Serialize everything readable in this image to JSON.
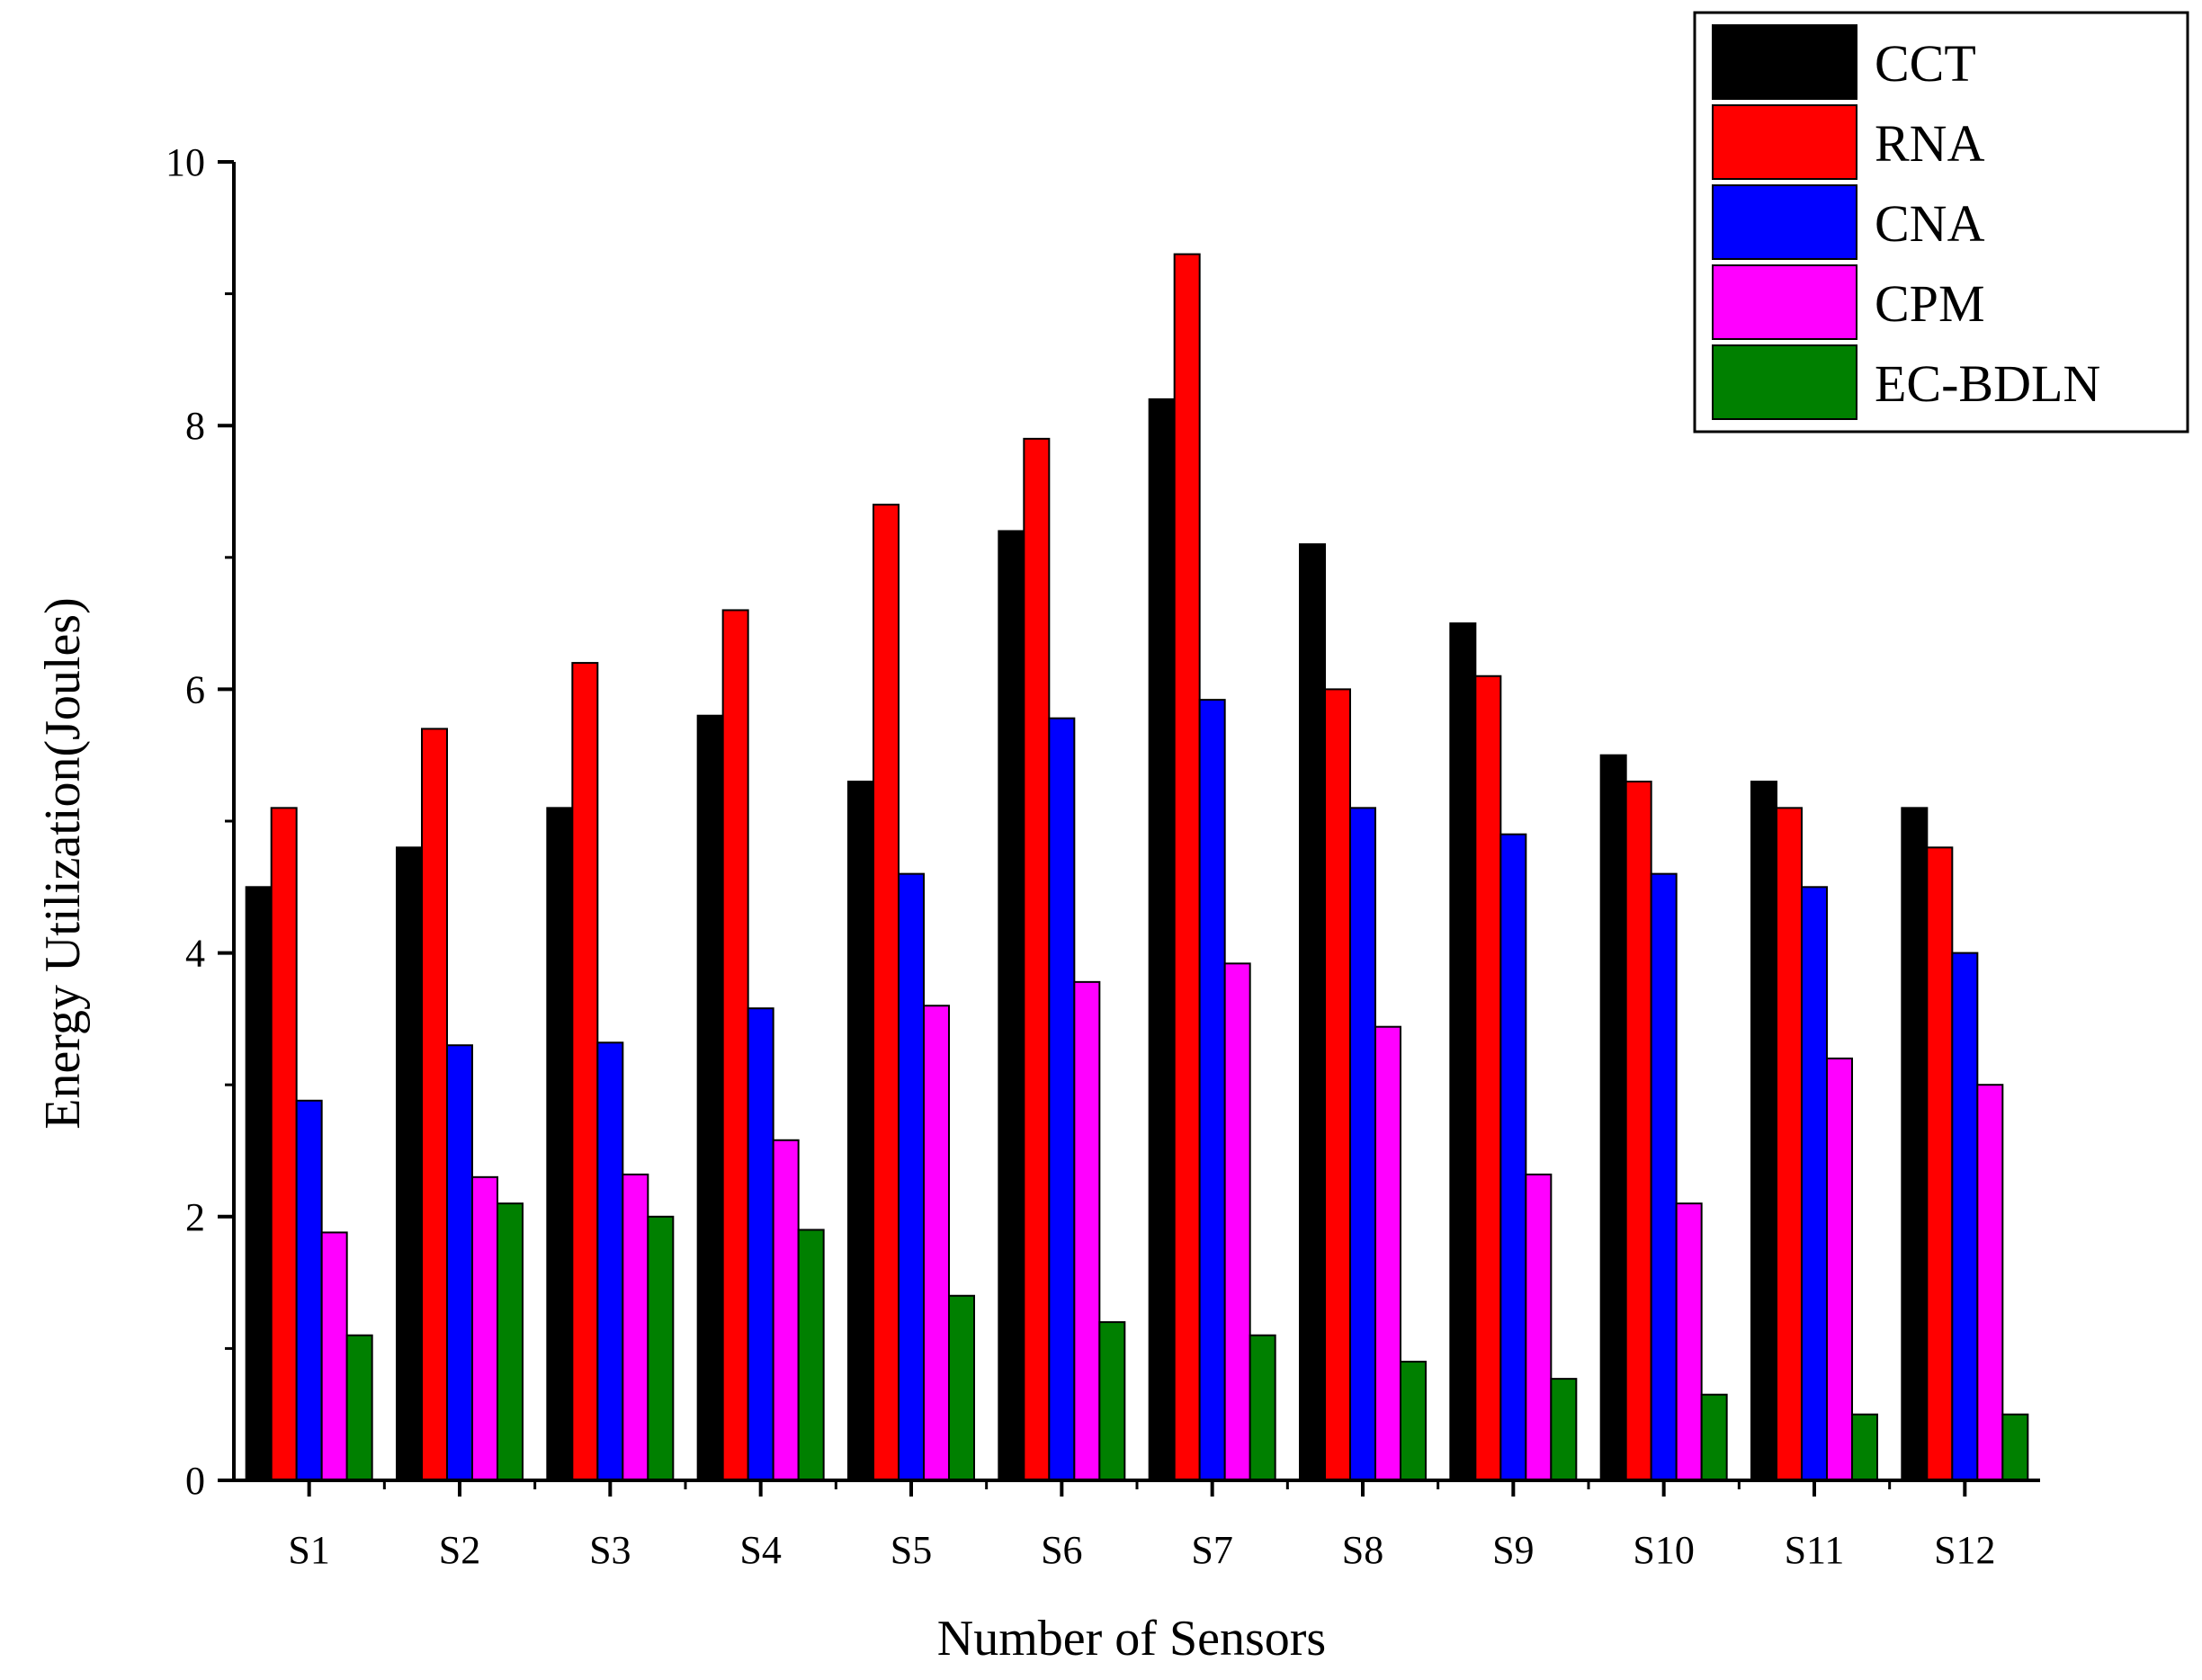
{
  "chart_data": {
    "type": "bar",
    "title": "",
    "xlabel": "Number of Sensors",
    "ylabel": "Energy Utilization(Joules)",
    "ylim": [
      0,
      10
    ],
    "yticks": [
      "0",
      "2",
      "4",
      "6",
      "8",
      "10"
    ],
    "grid": false,
    "legend_position": "top-right",
    "categories": [
      "S1",
      "S2",
      "S3",
      "S4",
      "S5",
      "S6",
      "S7",
      "S8",
      "S9",
      "S10",
      "S11",
      "S12"
    ],
    "series": [
      {
        "name": "CCT",
        "color": "#000000",
        "values": [
          4.5,
          4.8,
          5.1,
          5.8,
          5.3,
          7.2,
          8.2,
          7.1,
          6.5,
          5.5,
          5.3,
          5.1
        ]
      },
      {
        "name": "RNA",
        "color": "#ff0000",
        "values": [
          5.1,
          5.7,
          6.2,
          6.6,
          7.4,
          7.9,
          9.3,
          6.0,
          6.1,
          5.3,
          5.1,
          4.8
        ]
      },
      {
        "name": "CNA",
        "color": "#0000ff",
        "values": [
          2.88,
          3.3,
          3.32,
          3.58,
          4.6,
          5.78,
          5.92,
          5.1,
          4.9,
          4.6,
          4.5,
          4.0
        ]
      },
      {
        "name": "CPM",
        "color": "#ff00ff",
        "values": [
          1.88,
          2.3,
          2.32,
          2.58,
          3.6,
          3.78,
          3.92,
          3.44,
          2.32,
          2.1,
          3.2,
          3.0
        ]
      },
      {
        "name": "EC-BDLN",
        "color": "#008000",
        "values": [
          1.1,
          2.1,
          2.0,
          1.9,
          1.4,
          1.2,
          1.1,
          0.9,
          0.77,
          0.65,
          0.5,
          0.5
        ]
      }
    ]
  }
}
